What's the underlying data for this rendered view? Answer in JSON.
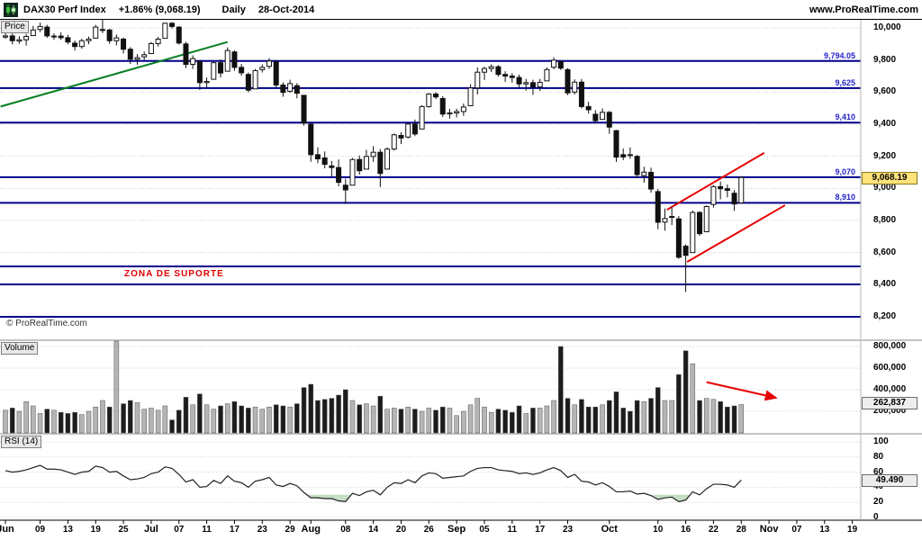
{
  "header": {
    "symbol": "DAX30 Perf Index",
    "change": "+1.86% (9,068.19)",
    "timeframe": "Daily",
    "date": "28-Oct-2014",
    "website": "www.ProRealTime.com"
  },
  "pane_labels": {
    "price": "Price",
    "volume": "Volume",
    "rsi": "RSI (14)"
  },
  "annotations": {
    "support_zone_text": "ZONA DE SUPORTE",
    "watermark": "© ProRealTime.com"
  },
  "price_axis": {
    "ticks": [
      {
        "v": 10000,
        "label": "10,000"
      },
      {
        "v": 9800,
        "label": "9,800"
      },
      {
        "v": 9600,
        "label": "9,600"
      },
      {
        "v": 9400,
        "label": "9,400"
      },
      {
        "v": 9200,
        "label": "9,200"
      },
      {
        "v": 9000,
        "label": "9,000"
      },
      {
        "v": 8800,
        "label": "8,800"
      },
      {
        "v": 8600,
        "label": "8,600"
      },
      {
        "v": 8400,
        "label": "8,400"
      },
      {
        "v": 8200,
        "label": "8,200"
      }
    ],
    "last_badge": "9,068.19"
  },
  "x_axis": {
    "labels": [
      {
        "text": "Jun",
        "index": 0,
        "bold": true
      },
      {
        "text": "09",
        "index": 5
      },
      {
        "text": "13",
        "index": 9
      },
      {
        "text": "19",
        "index": 13
      },
      {
        "text": "25",
        "index": 17
      },
      {
        "text": "Jul",
        "index": 21,
        "bold": true
      },
      {
        "text": "07",
        "index": 25
      },
      {
        "text": "11",
        "index": 29
      },
      {
        "text": "17",
        "index": 33
      },
      {
        "text": "23",
        "index": 37
      },
      {
        "text": "29",
        "index": 41
      },
      {
        "text": "Aug",
        "index": 44,
        "bold": true
      },
      {
        "text": "08",
        "index": 49
      },
      {
        "text": "14",
        "index": 53
      },
      {
        "text": "20",
        "index": 57
      },
      {
        "text": "26",
        "index": 61
      },
      {
        "text": "Sep",
        "index": 65,
        "bold": true
      },
      {
        "text": "05",
        "index": 69
      },
      {
        "text": "11",
        "index": 73
      },
      {
        "text": "17",
        "index": 77
      },
      {
        "text": "23",
        "index": 81
      },
      {
        "text": "Oct",
        "index": 87,
        "bold": true
      },
      {
        "text": "10",
        "index": 94
      },
      {
        "text": "16",
        "index": 98
      },
      {
        "text": "22",
        "index": 102
      },
      {
        "text": "28",
        "index": 106
      },
      {
        "text": "Nov",
        "index": 110,
        "bold": true
      },
      {
        "text": "07",
        "index": 114
      },
      {
        "text": "13",
        "index": 118
      },
      {
        "text": "19",
        "index": 122
      }
    ]
  },
  "chart_data": [
    {
      "type": "candlestick",
      "name": "DAX30 Perf Index Daily",
      "ylim": [
        8200,
        10060
      ],
      "dates": [
        "Jun-02",
        "Jun-03",
        "Jun-04",
        "Jun-05",
        "Jun-06",
        "Jun-09",
        "Jun-10",
        "Jun-11",
        "Jun-12",
        "Jun-13",
        "Jun-16",
        "Jun-17",
        "Jun-18",
        "Jun-19",
        "Jun-20",
        "Jun-23",
        "Jun-24",
        "Jun-25",
        "Jun-26",
        "Jun-27",
        "Jun-30",
        "Jul-01",
        "Jul-02",
        "Jul-03",
        "Jul-04",
        "Jul-07",
        "Jul-08",
        "Jul-09",
        "Jul-10",
        "Jul-11",
        "Jul-14",
        "Jul-15",
        "Jul-16",
        "Jul-17",
        "Jul-18",
        "Jul-21",
        "Jul-22",
        "Jul-23",
        "Jul-24",
        "Jul-25",
        "Jul-28",
        "Jul-29",
        "Jul-30",
        "Jul-31",
        "Aug-01",
        "Aug-04",
        "Aug-05",
        "Aug-06",
        "Aug-07",
        "Aug-08",
        "Aug-11",
        "Aug-12",
        "Aug-13",
        "Aug-14",
        "Aug-15",
        "Aug-18",
        "Aug-19",
        "Aug-20",
        "Aug-21",
        "Aug-22",
        "Aug-25",
        "Aug-26",
        "Aug-27",
        "Aug-28",
        "Aug-29",
        "Sep-01",
        "Sep-02",
        "Sep-03",
        "Sep-04",
        "Sep-05",
        "Sep-08",
        "Sep-09",
        "Sep-10",
        "Sep-11",
        "Sep-12",
        "Sep-15",
        "Sep-16",
        "Sep-17",
        "Sep-18",
        "Sep-19",
        "Sep-22",
        "Sep-23",
        "Sep-24",
        "Sep-25",
        "Sep-26",
        "Sep-29",
        "Sep-30",
        "Oct-01",
        "Oct-02",
        "Oct-03",
        "Oct-06",
        "Oct-07",
        "Oct-08",
        "Oct-09",
        "Oct-10",
        "Oct-13",
        "Oct-14",
        "Oct-15",
        "Oct-16",
        "Oct-17",
        "Oct-20",
        "Oct-21",
        "Oct-22",
        "Oct-23",
        "Oct-24",
        "Oct-27",
        "Oct-28"
      ],
      "ohlcv": [
        [
          9943,
          9980,
          9931,
          9950,
          210000
        ],
        [
          9950,
          9965,
          9897,
          9920,
          230000
        ],
        [
          9918,
          9948,
          9901,
          9926,
          200000
        ],
        [
          9926,
          9962,
          9890,
          9947,
          290000
        ],
        [
          9952,
          10013,
          9952,
          9987,
          250000
        ],
        [
          9990,
          10033,
          9974,
          10009,
          180000
        ],
        [
          10005,
          10019,
          9938,
          9950,
          220000
        ],
        [
          9948,
          9966,
          9926,
          9949,
          210000
        ],
        [
          9949,
          9972,
          9925,
          9939,
          190000
        ],
        [
          9939,
          9956,
          9898,
          9912,
          180000
        ],
        [
          9905,
          9921,
          9859,
          9884,
          190000
        ],
        [
          9884,
          9933,
          9870,
          9920,
          170000
        ],
        [
          9920,
          9946,
          9898,
          9930,
          200000
        ],
        [
          9936,
          10019,
          9936,
          10005,
          240000
        ],
        [
          9985,
          10051,
          9968,
          9990,
          300000
        ],
        [
          9987,
          9995,
          9901,
          9920,
          240000
        ],
        [
          9920,
          9959,
          9891,
          9938,
          850000
        ],
        [
          9930,
          9940,
          9840,
          9867,
          270000
        ],
        [
          9867,
          9880,
          9776,
          9805,
          300000
        ],
        [
          9805,
          9836,
          9771,
          9815,
          280000
        ],
        [
          9820,
          9853,
          9800,
          9833,
          220000
        ],
        [
          9840,
          9912,
          9840,
          9902,
          230000
        ],
        [
          9902,
          9944,
          9884,
          9930,
          210000
        ],
        [
          9935,
          10033,
          9935,
          10029,
          250000
        ],
        [
          10029,
          10036,
          9995,
          10009,
          120000
        ],
        [
          10005,
          10010,
          9896,
          9906,
          210000
        ],
        [
          9900,
          9913,
          9749,
          9773,
          330000
        ],
        [
          9773,
          9829,
          9744,
          9809,
          260000
        ],
        [
          9790,
          9799,
          9613,
          9659,
          360000
        ],
        [
          9659,
          9691,
          9621,
          9666,
          260000
        ],
        [
          9680,
          9789,
          9680,
          9783,
          220000
        ],
        [
          9783,
          9804,
          9691,
          9719,
          250000
        ],
        [
          9730,
          9879,
          9730,
          9859,
          270000
        ],
        [
          9850,
          9860,
          9733,
          9754,
          290000
        ],
        [
          9754,
          9775,
          9701,
          9720,
          250000
        ],
        [
          9710,
          9722,
          9599,
          9612,
          230000
        ],
        [
          9620,
          9744,
          9620,
          9734,
          240000
        ],
        [
          9740,
          9772,
          9722,
          9754,
          220000
        ],
        [
          9760,
          9812,
          9744,
          9794,
          240000
        ],
        [
          9790,
          9794,
          9631,
          9644,
          260000
        ],
        [
          9644,
          9661,
          9571,
          9598,
          250000
        ],
        [
          9605,
          9677,
          9596,
          9653,
          240000
        ],
        [
          9640,
          9656,
          9561,
          9593,
          270000
        ],
        [
          9580,
          9580,
          9391,
          9407,
          420000
        ],
        [
          9400,
          9410,
          9166,
          9210,
          450000
        ],
        [
          9210,
          9256,
          9157,
          9184,
          300000
        ],
        [
          9190,
          9230,
          9125,
          9150,
          310000
        ],
        [
          9140,
          9171,
          9072,
          9130,
          320000
        ],
        [
          9130,
          9180,
          9014,
          9038,
          350000
        ],
        [
          9020,
          9060,
          8903,
          8991,
          400000
        ],
        [
          9020,
          9190,
          9020,
          9180,
          300000
        ],
        [
          9180,
          9205,
          9086,
          9110,
          260000
        ],
        [
          9120,
          9240,
          9120,
          9199,
          270000
        ],
        [
          9199,
          9263,
          9166,
          9225,
          250000
        ],
        [
          9225,
          9245,
          9008,
          9093,
          340000
        ],
        [
          9120,
          9256,
          9120,
          9245,
          220000
        ],
        [
          9245,
          9342,
          9236,
          9334,
          230000
        ],
        [
          9330,
          9350,
          9276,
          9314,
          220000
        ],
        [
          9320,
          9410,
          9311,
          9401,
          240000
        ],
        [
          9401,
          9429,
          9326,
          9339,
          220000
        ],
        [
          9370,
          9519,
          9370,
          9510,
          200000
        ],
        [
          9510,
          9594,
          9503,
          9588,
          230000
        ],
        [
          9588,
          9600,
          9556,
          9570,
          210000
        ],
        [
          9560,
          9575,
          9446,
          9463,
          240000
        ],
        [
          9470,
          9496,
          9435,
          9470,
          230000
        ],
        [
          9470,
          9497,
          9442,
          9479,
          160000
        ],
        [
          9479,
          9529,
          9452,
          9507,
          200000
        ],
        [
          9515,
          9649,
          9515,
          9626,
          260000
        ],
        [
          9626,
          9754,
          9585,
          9724,
          320000
        ],
        [
          9724,
          9759,
          9676,
          9747,
          240000
        ],
        [
          9747,
          9773,
          9725,
          9758,
          190000
        ],
        [
          9758,
          9768,
          9696,
          9710,
          220000
        ],
        [
          9710,
          9730,
          9663,
          9700,
          210000
        ],
        [
          9700,
          9718,
          9659,
          9691,
          190000
        ],
        [
          9691,
          9709,
          9628,
          9651,
          250000
        ],
        [
          9651,
          9682,
          9610,
          9659,
          180000
        ],
        [
          9659,
          9677,
          9583,
          9632,
          230000
        ],
        [
          9632,
          9682,
          9608,
          9661,
          230000
        ],
        [
          9670,
          9754,
          9670,
          9740,
          250000
        ],
        [
          9755,
          9817,
          9741,
          9799,
          300000
        ],
        [
          9790,
          9795,
          9738,
          9749,
          800000
        ],
        [
          9740,
          9749,
          9582,
          9595,
          320000
        ],
        [
          9600,
          9679,
          9585,
          9662,
          260000
        ],
        [
          9662,
          9682,
          9498,
          9510,
          310000
        ],
        [
          9510,
          9540,
          9466,
          9490,
          240000
        ],
        [
          9462,
          9488,
          9407,
          9422,
          240000
        ],
        [
          9430,
          9498,
          9430,
          9474,
          260000
        ],
        [
          9474,
          9482,
          9340,
          9382,
          300000
        ],
        [
          9360,
          9365,
          9165,
          9195,
          380000
        ],
        [
          9210,
          9249,
          9176,
          9196,
          230000
        ],
        [
          9210,
          9255,
          9185,
          9209,
          200000
        ],
        [
          9200,
          9208,
          9065,
          9086,
          300000
        ],
        [
          9080,
          9135,
          9035,
          9101,
          290000
        ],
        [
          9100,
          9129,
          8974,
          8996,
          320000
        ],
        [
          8980,
          8996,
          8746,
          8789,
          420000
        ],
        [
          8790,
          8875,
          8737,
          8812,
          300000
        ],
        [
          8820,
          8889,
          8771,
          8825,
          300000
        ],
        [
          8810,
          8827,
          8562,
          8571,
          540000
        ],
        [
          8640,
          8651,
          8354,
          8583,
          760000
        ],
        [
          8600,
          8862,
          8600,
          8850,
          640000
        ],
        [
          8850,
          8858,
          8704,
          8718,
          300000
        ],
        [
          8730,
          8894,
          8730,
          8887,
          320000
        ],
        [
          8900,
          9021,
          8880,
          9011,
          310000
        ],
        [
          9011,
          9044,
          8932,
          8998,
          290000
        ],
        [
          8998,
          9024,
          8944,
          8988,
          240000
        ],
        [
          8970,
          8990,
          8860,
          8903,
          250000
        ],
        [
          8910,
          9075,
          8910,
          9068.19,
          262837
        ]
      ],
      "levels": [
        {
          "value": 9794.05,
          "label": "9,794.05"
        },
        {
          "value": 9625,
          "label": "9,625"
        },
        {
          "value": 9410,
          "label": "9,410"
        },
        {
          "value": 9070,
          "label": "9,070"
        },
        {
          "value": 8910,
          "label": "8,910"
        },
        {
          "value": 8514
        },
        {
          "value": 8402
        },
        {
          "value": 8200
        }
      ],
      "trendlines": [
        {
          "color": "green",
          "from": {
            "index": -0.7,
            "price": 9510
          },
          "to": {
            "index": 32,
            "price": 9912
          }
        },
        {
          "color": "red",
          "from": {
            "index": 95.3,
            "price": 8867
          },
          "to": {
            "index": 109.3,
            "price": 9221
          }
        },
        {
          "color": "red",
          "from": {
            "index": 98.2,
            "price": 8542
          },
          "to": {
            "index": 112.3,
            "price": 8895
          }
        }
      ],
      "last_close": 9068.19
    },
    {
      "type": "bar",
      "name": "Volume",
      "ylim": [
        0,
        880000
      ],
      "ticks": [
        {
          "v": 800000,
          "label": "800,000"
        },
        {
          "v": 600000,
          "label": "600,000"
        },
        {
          "v": 400000,
          "label": "400,000"
        },
        {
          "v": 200000,
          "label": "200,000"
        }
      ],
      "arrow": {
        "from": {
          "index": 101,
          "value": 470000
        },
        "to": {
          "index": 111,
          "value": 325000
        }
      },
      "last_value": 262837,
      "last_badge": "262,837"
    },
    {
      "type": "line",
      "name": "RSI (14)",
      "ylim": [
        0,
        100
      ],
      "ticks": [
        {
          "v": 100,
          "label": "100"
        },
        {
          "v": 80,
          "label": "80"
        },
        {
          "v": 60,
          "label": "60"
        },
        {
          "v": 40,
          "label": "40"
        },
        {
          "v": 20,
          "label": "20"
        },
        {
          "v": 0,
          "label": "0"
        }
      ],
      "oversold_threshold": 30,
      "values": [
        62,
        60,
        61,
        63,
        66,
        69,
        64,
        64,
        63,
        60,
        57,
        60,
        61,
        68,
        66,
        60,
        61,
        55,
        50,
        51,
        53,
        58,
        60,
        67,
        65,
        57,
        47,
        50,
        40,
        41,
        49,
        45,
        55,
        48,
        46,
        40,
        48,
        50,
        53,
        43,
        41,
        45,
        42,
        33,
        26,
        26,
        25,
        25,
        22,
        21,
        32,
        29,
        34,
        36,
        30,
        40,
        46,
        45,
        50,
        46,
        55,
        59,
        58,
        52,
        53,
        54,
        55,
        61,
        65,
        66,
        66,
        63,
        62,
        61,
        58,
        59,
        57,
        59,
        63,
        66,
        62,
        53,
        57,
        48,
        47,
        43,
        46,
        41,
        34,
        34,
        35,
        31,
        32,
        29,
        24,
        26,
        27,
        21,
        23,
        34,
        30,
        38,
        44,
        44,
        43,
        40,
        49.49
      ],
      "last_value": 49.49,
      "last_badge": "49.490"
    }
  ]
}
